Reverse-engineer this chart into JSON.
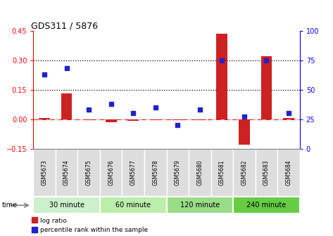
{
  "title": "GDS311 / 5876",
  "samples": [
    "GSM5673",
    "GSM5674",
    "GSM5675",
    "GSM5676",
    "GSM5677",
    "GSM5678",
    "GSM5679",
    "GSM5680",
    "GSM5681",
    "GSM5682",
    "GSM5683",
    "GSM5684"
  ],
  "log_ratio": [
    0.005,
    0.13,
    -0.005,
    -0.015,
    -0.01,
    -0.005,
    -0.005,
    -0.005,
    0.435,
    -0.13,
    0.32,
    0.005
  ],
  "percentile": [
    63,
    68,
    33,
    38,
    30,
    35,
    20,
    33,
    75,
    27,
    75,
    30
  ],
  "groups": [
    {
      "label": "30 minute",
      "start": 0,
      "end": 3,
      "color": "#ccf0cc"
    },
    {
      "label": "60 minute",
      "start": 3,
      "end": 6,
      "color": "#bbeeaa"
    },
    {
      "label": "120 minute",
      "start": 6,
      "end": 9,
      "color": "#99dd88"
    },
    {
      "label": "240 minute",
      "start": 9,
      "end": 12,
      "color": "#66cc44"
    }
  ],
  "ylim_left": [
    -0.15,
    0.45
  ],
  "ylim_right": [
    0,
    100
  ],
  "yticks_left": [
    -0.15,
    0.0,
    0.15,
    0.3,
    0.45
  ],
  "yticks_right": [
    0,
    25,
    50,
    75,
    100
  ],
  "hlines": [
    0.15,
    0.3
  ],
  "bar_color": "#cc2222",
  "dot_color": "#2222cc",
  "bar_width": 0.5,
  "bar_color_hex": "#cc0000",
  "dot_color_hex": "#0000cc"
}
